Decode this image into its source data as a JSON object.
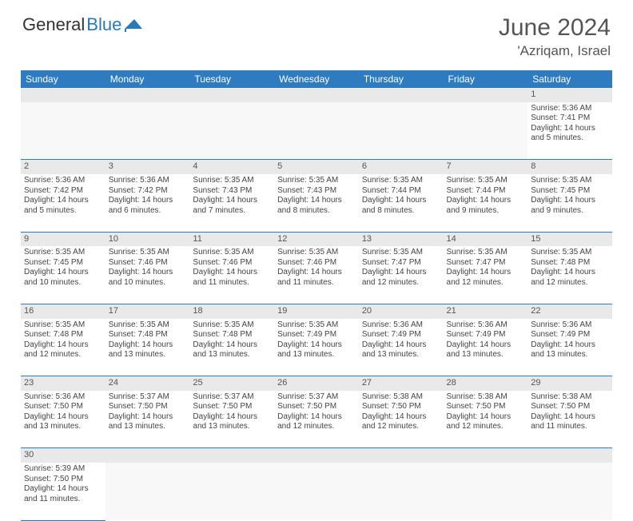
{
  "logo": {
    "part1": "General",
    "part2": "Blue"
  },
  "title": "June 2024",
  "location": "'Azriqam, Israel",
  "colors": {
    "header_bg": "#2e7cbf",
    "header_text": "#ffffff",
    "band_bg": "#e9e9e9",
    "border": "#2e7cbf",
    "logo_blue": "#2a7ab8"
  },
  "weekdays": [
    "Sunday",
    "Monday",
    "Tuesday",
    "Wednesday",
    "Thursday",
    "Friday",
    "Saturday"
  ],
  "weeks": [
    [
      null,
      null,
      null,
      null,
      null,
      null,
      {
        "d": "1",
        "sr": "5:36 AM",
        "ss": "7:41 PM",
        "dl": "14 hours and 5 minutes."
      }
    ],
    [
      {
        "d": "2",
        "sr": "5:36 AM",
        "ss": "7:42 PM",
        "dl": "14 hours and 5 minutes."
      },
      {
        "d": "3",
        "sr": "5:36 AM",
        "ss": "7:42 PM",
        "dl": "14 hours and 6 minutes."
      },
      {
        "d": "4",
        "sr": "5:35 AM",
        "ss": "7:43 PM",
        "dl": "14 hours and 7 minutes."
      },
      {
        "d": "5",
        "sr": "5:35 AM",
        "ss": "7:43 PM",
        "dl": "14 hours and 8 minutes."
      },
      {
        "d": "6",
        "sr": "5:35 AM",
        "ss": "7:44 PM",
        "dl": "14 hours and 8 minutes."
      },
      {
        "d": "7",
        "sr": "5:35 AM",
        "ss": "7:44 PM",
        "dl": "14 hours and 9 minutes."
      },
      {
        "d": "8",
        "sr": "5:35 AM",
        "ss": "7:45 PM",
        "dl": "14 hours and 9 minutes."
      }
    ],
    [
      {
        "d": "9",
        "sr": "5:35 AM",
        "ss": "7:45 PM",
        "dl": "14 hours and 10 minutes."
      },
      {
        "d": "10",
        "sr": "5:35 AM",
        "ss": "7:46 PM",
        "dl": "14 hours and 10 minutes."
      },
      {
        "d": "11",
        "sr": "5:35 AM",
        "ss": "7:46 PM",
        "dl": "14 hours and 11 minutes."
      },
      {
        "d": "12",
        "sr": "5:35 AM",
        "ss": "7:46 PM",
        "dl": "14 hours and 11 minutes."
      },
      {
        "d": "13",
        "sr": "5:35 AM",
        "ss": "7:47 PM",
        "dl": "14 hours and 12 minutes."
      },
      {
        "d": "14",
        "sr": "5:35 AM",
        "ss": "7:47 PM",
        "dl": "14 hours and 12 minutes."
      },
      {
        "d": "15",
        "sr": "5:35 AM",
        "ss": "7:48 PM",
        "dl": "14 hours and 12 minutes."
      }
    ],
    [
      {
        "d": "16",
        "sr": "5:35 AM",
        "ss": "7:48 PM",
        "dl": "14 hours and 12 minutes."
      },
      {
        "d": "17",
        "sr": "5:35 AM",
        "ss": "7:48 PM",
        "dl": "14 hours and 13 minutes."
      },
      {
        "d": "18",
        "sr": "5:35 AM",
        "ss": "7:48 PM",
        "dl": "14 hours and 13 minutes."
      },
      {
        "d": "19",
        "sr": "5:35 AM",
        "ss": "7:49 PM",
        "dl": "14 hours and 13 minutes."
      },
      {
        "d": "20",
        "sr": "5:36 AM",
        "ss": "7:49 PM",
        "dl": "14 hours and 13 minutes."
      },
      {
        "d": "21",
        "sr": "5:36 AM",
        "ss": "7:49 PM",
        "dl": "14 hours and 13 minutes."
      },
      {
        "d": "22",
        "sr": "5:36 AM",
        "ss": "7:49 PM",
        "dl": "14 hours and 13 minutes."
      }
    ],
    [
      {
        "d": "23",
        "sr": "5:36 AM",
        "ss": "7:50 PM",
        "dl": "14 hours and 13 minutes."
      },
      {
        "d": "24",
        "sr": "5:37 AM",
        "ss": "7:50 PM",
        "dl": "14 hours and 13 minutes."
      },
      {
        "d": "25",
        "sr": "5:37 AM",
        "ss": "7:50 PM",
        "dl": "14 hours and 13 minutes."
      },
      {
        "d": "26",
        "sr": "5:37 AM",
        "ss": "7:50 PM",
        "dl": "14 hours and 12 minutes."
      },
      {
        "d": "27",
        "sr": "5:38 AM",
        "ss": "7:50 PM",
        "dl": "14 hours and 12 minutes."
      },
      {
        "d": "28",
        "sr": "5:38 AM",
        "ss": "7:50 PM",
        "dl": "14 hours and 12 minutes."
      },
      {
        "d": "29",
        "sr": "5:38 AM",
        "ss": "7:50 PM",
        "dl": "14 hours and 11 minutes."
      }
    ],
    [
      {
        "d": "30",
        "sr": "5:39 AM",
        "ss": "7:50 PM",
        "dl": "14 hours and 11 minutes."
      },
      null,
      null,
      null,
      null,
      null,
      null
    ]
  ],
  "labels": {
    "sunrise": "Sunrise:",
    "sunset": "Sunset:",
    "daylight": "Daylight:"
  }
}
